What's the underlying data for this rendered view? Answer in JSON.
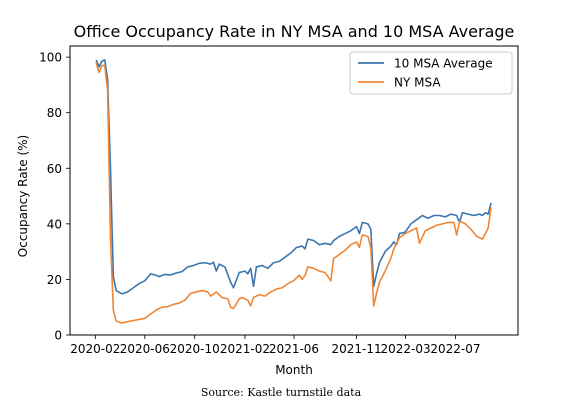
{
  "chart_data": {
    "type": "line",
    "title": "Office Occupancy Rate in NY MSA and 10 MSA Average",
    "xlabel": "Month",
    "ylabel": "Occupancy Rate (%)",
    "xlim": [
      "2019-12-01",
      "2022-12-01"
    ],
    "ylim": [
      0,
      104
    ],
    "xticks": [
      "2020-02-01",
      "2020-06-01",
      "2020-10-01",
      "2021-02-01",
      "2021-06-01",
      "2021-11-01",
      "2022-03-01",
      "2022-07-01"
    ],
    "xtick_labels": [
      "2020-02",
      "2020-06",
      "2020-10",
      "2021-02",
      "2021-06",
      "2021-11",
      "2022-03",
      "2022-07"
    ],
    "yticks": [
      0,
      20,
      40,
      60,
      80,
      100
    ],
    "grid": false,
    "legend_position": "top-right",
    "series": [
      {
        "name": "10 MSA Average",
        "color": "#3b75af",
        "points": [
          [
            "2020-02-03",
            99
          ],
          [
            "2020-02-10",
            96.5
          ],
          [
            "2020-02-17",
            98.5
          ],
          [
            "2020-02-24",
            99
          ],
          [
            "2020-03-02",
            92
          ],
          [
            "2020-03-09",
            60
          ],
          [
            "2020-03-16",
            21
          ],
          [
            "2020-03-23",
            16
          ],
          [
            "2020-04-06",
            14.8
          ],
          [
            "2020-04-20",
            15.5
          ],
          [
            "2020-05-04",
            17
          ],
          [
            "2020-05-18",
            18.5
          ],
          [
            "2020-06-01",
            19.5
          ],
          [
            "2020-06-15",
            22
          ],
          [
            "2020-06-29",
            21.5
          ],
          [
            "2020-07-06",
            21
          ],
          [
            "2020-07-20",
            21.8
          ],
          [
            "2020-08-03",
            21.6
          ],
          [
            "2020-08-17",
            22.3
          ],
          [
            "2020-08-31",
            22.8
          ],
          [
            "2020-09-14",
            24.5
          ],
          [
            "2020-09-28",
            25
          ],
          [
            "2020-10-12",
            25.8
          ],
          [
            "2020-10-26",
            26
          ],
          [
            "2020-11-09",
            25.5
          ],
          [
            "2020-11-16",
            26.2
          ],
          [
            "2020-11-23",
            23
          ],
          [
            "2020-11-30",
            25.5
          ],
          [
            "2020-12-14",
            24.5
          ],
          [
            "2020-12-28",
            19
          ],
          [
            "2021-01-04",
            17
          ],
          [
            "2021-01-18",
            22.5
          ],
          [
            "2021-02-01",
            23
          ],
          [
            "2021-02-08",
            22
          ],
          [
            "2021-02-15",
            24
          ],
          [
            "2021-02-22",
            17.5
          ],
          [
            "2021-03-01",
            24.5
          ],
          [
            "2021-03-15",
            25
          ],
          [
            "2021-03-29",
            24
          ],
          [
            "2021-04-12",
            26
          ],
          [
            "2021-04-26",
            26.5
          ],
          [
            "2021-05-10",
            28
          ],
          [
            "2021-05-24",
            29.5
          ],
          [
            "2021-06-07",
            31.5
          ],
          [
            "2021-06-21",
            32
          ],
          [
            "2021-06-28",
            31
          ],
          [
            "2021-07-05",
            34.5
          ],
          [
            "2021-07-19",
            34
          ],
          [
            "2021-08-02",
            32.5
          ],
          [
            "2021-08-16",
            33
          ],
          [
            "2021-08-30",
            32.5
          ],
          [
            "2021-09-06",
            34
          ],
          [
            "2021-09-20",
            35.5
          ],
          [
            "2021-10-04",
            36.5
          ],
          [
            "2021-10-18",
            37.5
          ],
          [
            "2021-11-01",
            39
          ],
          [
            "2021-11-08",
            36.5
          ],
          [
            "2021-11-15",
            40.5
          ],
          [
            "2021-11-29",
            40
          ],
          [
            "2021-12-06",
            38
          ],
          [
            "2021-12-13",
            17.5
          ],
          [
            "2021-12-20",
            22
          ],
          [
            "2021-12-27",
            26
          ],
          [
            "2022-01-10",
            30
          ],
          [
            "2022-01-24",
            32
          ],
          [
            "2022-01-31",
            33.5
          ],
          [
            "2022-02-07",
            32.5
          ],
          [
            "2022-02-14",
            36.5
          ],
          [
            "2022-02-28",
            37
          ],
          [
            "2022-03-14",
            40
          ],
          [
            "2022-03-28",
            41.5
          ],
          [
            "2022-04-11",
            43
          ],
          [
            "2022-04-25",
            42
          ],
          [
            "2022-05-09",
            43
          ],
          [
            "2022-05-23",
            43
          ],
          [
            "2022-06-06",
            42.5
          ],
          [
            "2022-06-20",
            43.5
          ],
          [
            "2022-07-04",
            43
          ],
          [
            "2022-07-11",
            40.5
          ],
          [
            "2022-07-18",
            44
          ],
          [
            "2022-08-01",
            43.5
          ],
          [
            "2022-08-15",
            43
          ],
          [
            "2022-08-29",
            43.5
          ],
          [
            "2022-09-05",
            43
          ],
          [
            "2022-09-12",
            44
          ],
          [
            "2022-09-19",
            43.5
          ],
          [
            "2022-09-26",
            47.5
          ]
        ]
      },
      {
        "name": "NY MSA",
        "color": "#ef8636",
        "points": [
          [
            "2020-02-03",
            98
          ],
          [
            "2020-02-10",
            94.5
          ],
          [
            "2020-02-17",
            97
          ],
          [
            "2020-02-24",
            97
          ],
          [
            "2020-03-02",
            88
          ],
          [
            "2020-03-09",
            35
          ],
          [
            "2020-03-16",
            9
          ],
          [
            "2020-03-23",
            5
          ],
          [
            "2020-04-06",
            4.3
          ],
          [
            "2020-04-20",
            4.8
          ],
          [
            "2020-05-04",
            5.2
          ],
          [
            "2020-05-18",
            5.6
          ],
          [
            "2020-06-01",
            6
          ],
          [
            "2020-06-15",
            7.5
          ],
          [
            "2020-06-29",
            9
          ],
          [
            "2020-07-13",
            10
          ],
          [
            "2020-07-27",
            10.2
          ],
          [
            "2020-08-10",
            11
          ],
          [
            "2020-08-24",
            11.5
          ],
          [
            "2020-09-07",
            12.5
          ],
          [
            "2020-09-21",
            15
          ],
          [
            "2020-10-05",
            15.5
          ],
          [
            "2020-10-19",
            16
          ],
          [
            "2020-11-02",
            15.5
          ],
          [
            "2020-11-09",
            14
          ],
          [
            "2020-11-23",
            15.5
          ],
          [
            "2020-12-07",
            13.5
          ],
          [
            "2020-12-21",
            13
          ],
          [
            "2020-12-28",
            10
          ],
          [
            "2021-01-04",
            9.5
          ],
          [
            "2021-01-18",
            13
          ],
          [
            "2021-01-25",
            13.5
          ],
          [
            "2021-02-08",
            12.5
          ],
          [
            "2021-02-15",
            10.5
          ],
          [
            "2021-02-22",
            13.5
          ],
          [
            "2021-03-08",
            14.5
          ],
          [
            "2021-03-22",
            14
          ],
          [
            "2021-04-05",
            15.5
          ],
          [
            "2021-04-19",
            16.5
          ],
          [
            "2021-05-03",
            17
          ],
          [
            "2021-05-17",
            18.5
          ],
          [
            "2021-05-31",
            19.5
          ],
          [
            "2021-06-14",
            21.5
          ],
          [
            "2021-06-21",
            20
          ],
          [
            "2021-06-28",
            21.5
          ],
          [
            "2021-07-05",
            24.5
          ],
          [
            "2021-07-19",
            24
          ],
          [
            "2021-08-02",
            23
          ],
          [
            "2021-08-16",
            22.5
          ],
          [
            "2021-08-30",
            19.5
          ],
          [
            "2021-09-06",
            27.5
          ],
          [
            "2021-09-20",
            29
          ],
          [
            "2021-10-04",
            30.5
          ],
          [
            "2021-10-18",
            32.5
          ],
          [
            "2021-11-01",
            33.5
          ],
          [
            "2021-11-08",
            31.5
          ],
          [
            "2021-11-15",
            36
          ],
          [
            "2021-11-29",
            35.5
          ],
          [
            "2021-12-06",
            31
          ],
          [
            "2021-12-13",
            10.5
          ],
          [
            "2021-12-20",
            15
          ],
          [
            "2021-12-27",
            19
          ],
          [
            "2022-01-10",
            23
          ],
          [
            "2022-01-24",
            27.5
          ],
          [
            "2022-01-31",
            31
          ],
          [
            "2022-02-14",
            35
          ],
          [
            "2022-02-28",
            36.5
          ],
          [
            "2022-03-14",
            37.5
          ],
          [
            "2022-03-28",
            38.5
          ],
          [
            "2022-04-04",
            33
          ],
          [
            "2022-04-18",
            37.5
          ],
          [
            "2022-05-02",
            38.5
          ],
          [
            "2022-05-16",
            39.5
          ],
          [
            "2022-05-30",
            40
          ],
          [
            "2022-06-13",
            40.5
          ],
          [
            "2022-06-27",
            40.5
          ],
          [
            "2022-07-04",
            36
          ],
          [
            "2022-07-11",
            41
          ],
          [
            "2022-07-25",
            40
          ],
          [
            "2022-08-08",
            38
          ],
          [
            "2022-08-22",
            35.5
          ],
          [
            "2022-09-05",
            34.5
          ],
          [
            "2022-09-19",
            38.5
          ],
          [
            "2022-09-26",
            46
          ]
        ]
      }
    ]
  },
  "footer": {
    "source": "Source: Kastle turnstile data"
  }
}
